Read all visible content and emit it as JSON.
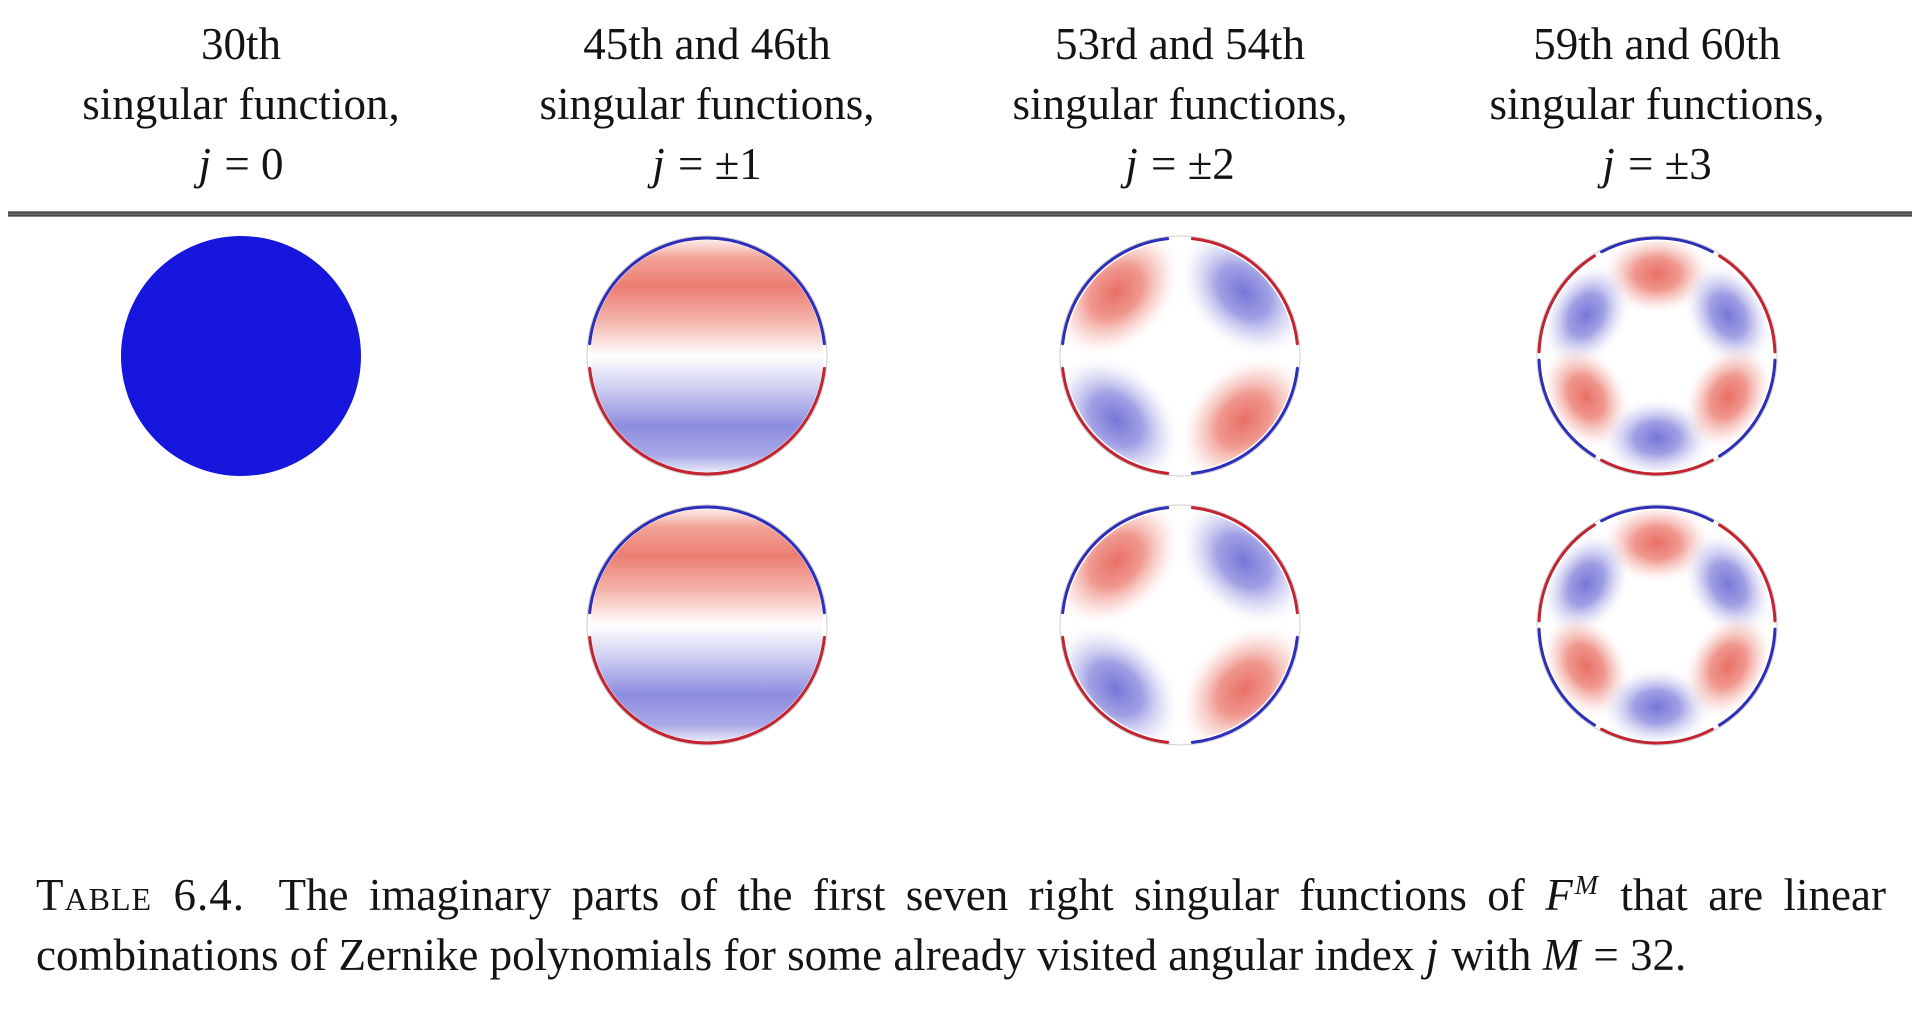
{
  "document": {
    "headers": [
      {
        "ordinal_line": "30th",
        "function_line": "singular function,",
        "index_var": "j",
        "index_eq": "= 0"
      },
      {
        "ordinal_line": "45th and 46th",
        "function_line": "singular functions,",
        "index_var": "j",
        "index_eq": "= ±1"
      },
      {
        "ordinal_line": "53rd and 54th",
        "function_line": "singular functions,",
        "index_var": "j",
        "index_eq": "= ±2"
      },
      {
        "ordinal_line": "59th and 60th",
        "function_line": "singular functions,",
        "index_var": "j",
        "index_eq": "= ±3"
      }
    ],
    "disks": [
      {
        "row": 0,
        "col": 0,
        "pattern": "uniform_blue",
        "description": "solid blue disk, j = 0 mode"
      },
      {
        "row": 0,
        "col": 1,
        "pattern": "dipole",
        "description": "red upper half, blue lower half, opposite-colored rim"
      },
      {
        "row": 0,
        "col": 2,
        "pattern": "quadrupole",
        "description": "red top-left and bottom-right lobes, blue top-right and bottom-left lobes, white cross"
      },
      {
        "row": 0,
        "col": 3,
        "pattern": "sextupole",
        "description": "six alternating lobes: red top, blue upper sides, red lower sides, blue bottom, white star"
      },
      {
        "row": 1,
        "col": 1,
        "pattern": "dipole",
        "description": "red upper half, blue lower half, opposite-colored rim"
      },
      {
        "row": 1,
        "col": 2,
        "pattern": "quadrupole",
        "description": "red top-left and bottom-right lobes, blue top-right and bottom-left lobes, white cross"
      },
      {
        "row": 1,
        "col": 3,
        "pattern": "sextupole",
        "description": "six alternating lobes: red top, blue upper sides, red lower sides, blue bottom, white star"
      }
    ],
    "colors": {
      "uniform_blue": "#1616dd",
      "lobe_red": "#ec7d72",
      "lobe_blue": "#8888de",
      "rim_red": "#c22432",
      "rim_blue": "#2e2eb8",
      "rule_gray": "#4a4a4a"
    },
    "caption": {
      "label": "Table 6.4.",
      "part1": " The imaginary parts of the first seven right singular functions of ",
      "f_var": "F",
      "f_sup": "M",
      "part2": " that are linear combinations of Zernike polynomials for some already visited angular index ",
      "j_var": "j",
      "part3": " with ",
      "m_var": "M",
      "part4": " = 32."
    }
  }
}
